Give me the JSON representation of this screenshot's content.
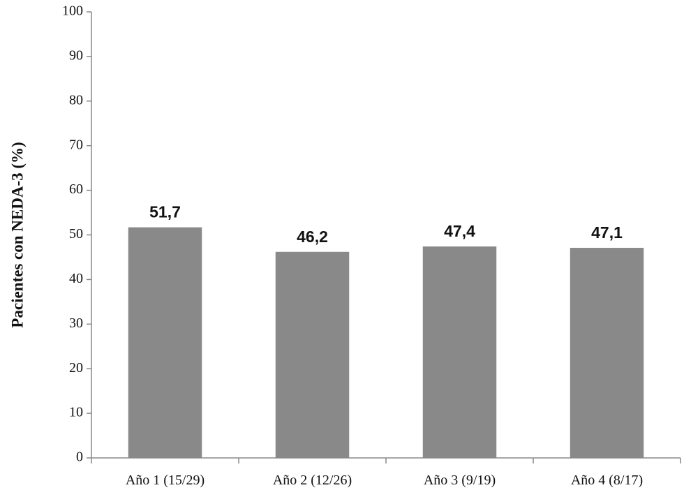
{
  "chart_data": {
    "type": "bar",
    "title": "",
    "xlabel": "",
    "ylabel": "Pacientes con NEDA-3 (%)",
    "ylim": [
      0,
      100
    ],
    "y_ticks": [
      0,
      10,
      20,
      30,
      40,
      50,
      60,
      70,
      80,
      90,
      100
    ],
    "grid": false,
    "categories": [
      "Año 1 (15/29)",
      "Año 2 (12/26)",
      "Año 3 (9/19)",
      "Año 4 (8/17)"
    ],
    "values": [
      51.7,
      46.2,
      47.4,
      47.1
    ],
    "data_labels": [
      "51,7",
      "46,2",
      "47,4",
      "47,1"
    ],
    "bar_color": "#898989",
    "axis_color": "#888888"
  }
}
